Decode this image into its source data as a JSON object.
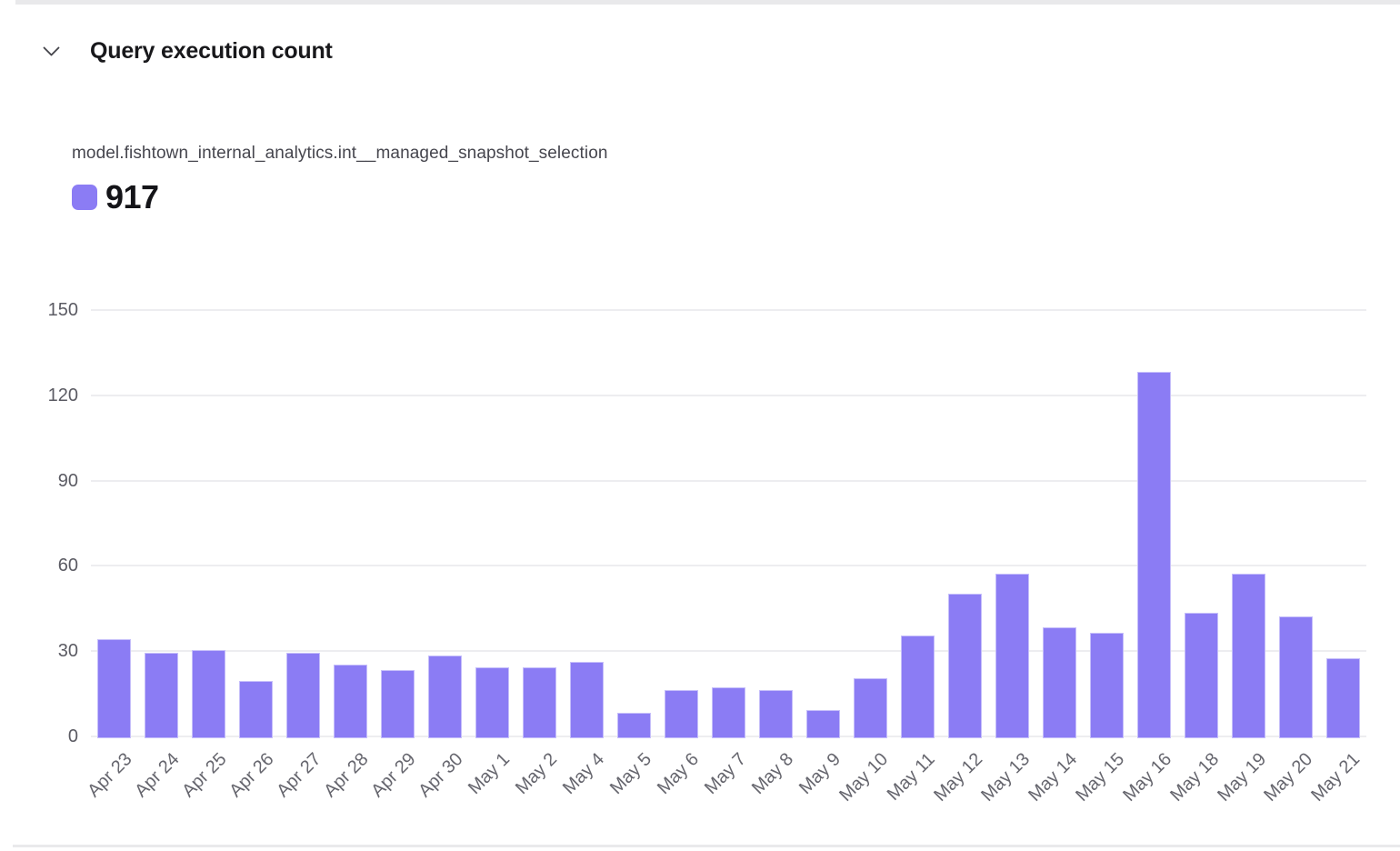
{
  "header": {
    "title": "Query execution count"
  },
  "legend": {
    "series_name": "model.fishtown_internal_analytics.int__managed_snapshot_selection",
    "total": "917",
    "swatch_color": "#8b7cf4"
  },
  "icons": {
    "collapse": "chevron-down-icon"
  },
  "colors": {
    "bar": "#8b7cf4",
    "gridline": "#ededf0",
    "y_axis_label": "#5b5b63",
    "x_axis_label": "#66666e",
    "title": "#18181b",
    "divider": "#e9e9eb"
  },
  "chart_data": {
    "type": "bar",
    "title": "Query execution count",
    "series_name": "model.fishtown_internal_analytics.int__managed_snapshot_selection",
    "series_total": 917,
    "categories": [
      "Apr 23",
      "Apr 24",
      "Apr 25",
      "Apr 26",
      "Apr 27",
      "Apr 28",
      "Apr 29",
      "Apr 30",
      "May 1",
      "May 2",
      "May 4",
      "May 5",
      "May 6",
      "May 7",
      "May 8",
      "May 9",
      "May 10",
      "May 11",
      "May 12",
      "May 13",
      "May 14",
      "May 15",
      "May 16",
      "May 18",
      "May 19",
      "May 20",
      "May 21"
    ],
    "values": [
      35,
      30,
      31,
      20,
      30,
      26,
      24,
      29,
      25,
      25,
      27,
      9,
      17,
      18,
      17,
      10,
      21,
      36,
      51,
      58,
      39,
      37,
      129,
      44,
      58,
      43,
      28
    ],
    "xlabel": "",
    "ylabel": "",
    "ylim": [
      0,
      150
    ],
    "yticks": [
      0,
      30,
      60,
      90,
      120,
      150
    ],
    "grid": true,
    "x_label_rotation": -45,
    "legend_position": "top-left",
    "bar_color": "#8b7cf4"
  }
}
